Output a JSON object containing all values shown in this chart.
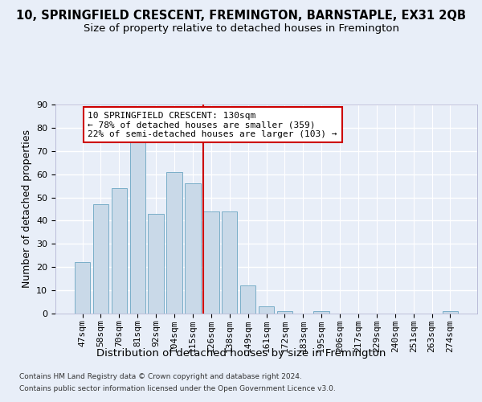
{
  "title": "10, SPRINGFIELD CRESCENT, FREMINGTON, BARNSTAPLE, EX31 2QB",
  "subtitle": "Size of property relative to detached houses in Fremington",
  "xlabel": "Distribution of detached houses by size in Fremington",
  "ylabel": "Number of detached properties",
  "categories": [
    "47sqm",
    "58sqm",
    "70sqm",
    "81sqm",
    "92sqm",
    "104sqm",
    "115sqm",
    "126sqm",
    "138sqm",
    "149sqm",
    "161sqm",
    "172sqm",
    "183sqm",
    "195sqm",
    "206sqm",
    "217sqm",
    "229sqm",
    "240sqm",
    "251sqm",
    "263sqm",
    "274sqm"
  ],
  "values": [
    22,
    47,
    54,
    74,
    43,
    61,
    56,
    44,
    44,
    12,
    3,
    1,
    0,
    1,
    0,
    0,
    0,
    0,
    0,
    0,
    1
  ],
  "bar_color": "#c9d9e8",
  "bar_edge_color": "#7aaec8",
  "property_line_index": 7,
  "annotation_title": "10 SPRINGFIELD CRESCENT: 130sqm",
  "annotation_line1": "← 78% of detached houses are smaller (359)",
  "annotation_line2": "22% of semi-detached houses are larger (103) →",
  "annotation_box_color": "#ffffff",
  "annotation_box_edge_color": "#cc0000",
  "vline_color": "#cc0000",
  "ylim": [
    0,
    90
  ],
  "yticks": [
    0,
    10,
    20,
    30,
    40,
    50,
    60,
    70,
    80,
    90
  ],
  "bg_color": "#e8eef8",
  "axes_bg_color": "#e8eef8",
  "grid_color": "#ffffff",
  "title_fontsize": 10.5,
  "subtitle_fontsize": 9.5,
  "xlabel_fontsize": 9.5,
  "ylabel_fontsize": 9,
  "tick_fontsize": 8,
  "annotation_fontsize": 8,
  "footer_line1": "Contains HM Land Registry data © Crown copyright and database right 2024.",
  "footer_line2": "Contains public sector information licensed under the Open Government Licence v3.0."
}
